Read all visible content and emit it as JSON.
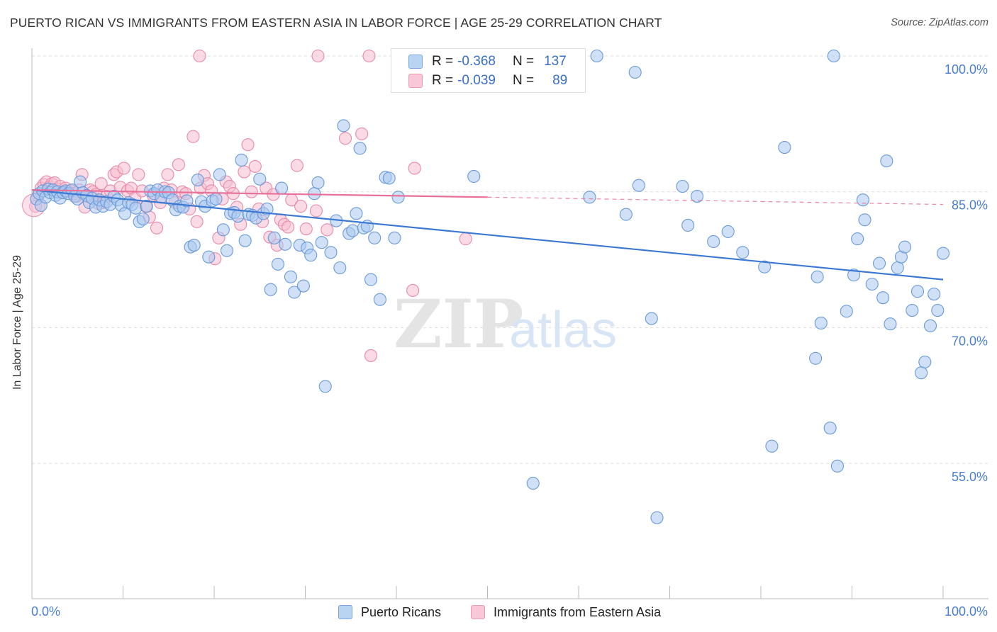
{
  "title": "PUERTO RICAN VS IMMIGRANTS FROM EASTERN ASIA IN LABOR FORCE | AGE 25-29 CORRELATION CHART",
  "source": "Source: ZipAtlas.com",
  "watermark": {
    "zip": "ZIP",
    "atlas": "atlas"
  },
  "legend": {
    "rows": [
      {
        "r_label": "R =",
        "r_value": "-0.368",
        "n_label": "N =",
        "n_value": "137"
      },
      {
        "r_label": "R =",
        "r_value": "-0.039",
        "n_label": "N =",
        "n_value": "89"
      }
    ]
  },
  "bottom_legend": [
    "Puerto Ricans",
    "Immigrants from Eastern Asia"
  ],
  "colors": {
    "blue_fill": "#a9c8f0",
    "blue_stroke": "#6a9ad8",
    "blue_line": "#3a78d4",
    "pink_fill": "#f6bdd0",
    "pink_stroke": "#e88aaa",
    "pink_line": "#e8709a",
    "tick_text": "#4a7fd0",
    "grid": "#dddddd"
  },
  "chart_data": {
    "type": "scatter",
    "title": "PUERTO RICAN VS IMMIGRANTS FROM EASTERN ASIA IN LABOR FORCE | AGE 25-29 CORRELATION CHART",
    "xlabel": "",
    "ylabel": "In Labor Force | Age 25-29",
    "xlim": [
      0,
      100
    ],
    "ylim": [
      40,
      102
    ],
    "x_tick_labels": [
      "0.0%",
      "100.0%"
    ],
    "y_ticks": [
      55,
      70,
      85,
      100
    ],
    "y_tick_labels": [
      "55.0%",
      "70.0%",
      "85.0%",
      "100.0%"
    ],
    "grid": "horizontal dashed",
    "legend_placement": "bottom",
    "series": [
      {
        "name": "Puerto Ricans",
        "color": "#a9c8f0",
        "trend": {
          "x": [
            0,
            100
          ],
          "y": [
            85.2,
            75.3
          ],
          "style": "solid"
        },
        "points": [
          [
            0.5,
            84.2
          ],
          [
            0.8,
            84.8
          ],
          [
            1.0,
            83.5
          ],
          [
            1.2,
            85.1
          ],
          [
            1.5,
            84.4
          ],
          [
            1.8,
            85.3
          ],
          [
            2.0,
            84.9
          ],
          [
            2.3,
            85.2
          ],
          [
            2.6,
            84.6
          ],
          [
            2.8,
            85.0
          ],
          [
            3.1,
            84.3
          ],
          [
            3.4,
            84.9
          ],
          [
            3.7,
            85.1
          ],
          [
            4.0,
            84.8
          ],
          [
            4.4,
            85.2
          ],
          [
            4.7,
            84.5
          ],
          [
            5.0,
            84.2
          ],
          [
            5.3,
            86.1
          ],
          [
            5.6,
            84.9
          ],
          [
            6.0,
            84.6
          ],
          [
            6.3,
            83.8
          ],
          [
            6.6,
            84.3
          ],
          [
            7.0,
            83.3
          ],
          [
            7.4,
            84.1
          ],
          [
            7.8,
            83.4
          ],
          [
            8.2,
            83.9
          ],
          [
            8.6,
            83.6
          ],
          [
            9.0,
            84.5
          ],
          [
            9.4,
            84.1
          ],
          [
            9.8,
            83.5
          ],
          [
            10.2,
            82.6
          ],
          [
            10.6,
            83.8
          ],
          [
            11.0,
            83.6
          ],
          [
            11.4,
            83.2
          ],
          [
            11.8,
            81.7
          ],
          [
            12.2,
            82.0
          ],
          [
            12.6,
            83.4
          ],
          [
            13.0,
            85.1
          ],
          [
            13.4,
            84.8
          ],
          [
            13.8,
            85.2
          ],
          [
            14.2,
            84.4
          ],
          [
            14.6,
            85.0
          ],
          [
            15.0,
            84.9
          ],
          [
            15.4,
            84.1
          ],
          [
            15.8,
            83.0
          ],
          [
            16.2,
            83.4
          ],
          [
            16.6,
            83.3
          ],
          [
            17.0,
            84.0
          ],
          [
            17.4,
            78.9
          ],
          [
            17.8,
            79.1
          ],
          [
            18.2,
            86.3
          ],
          [
            18.6,
            83.9
          ],
          [
            19.0,
            83.4
          ],
          [
            19.4,
            77.8
          ],
          [
            19.8,
            84.0
          ],
          [
            20.2,
            84.2
          ],
          [
            20.6,
            86.9
          ],
          [
            21.0,
            80.8
          ],
          [
            21.4,
            78.5
          ],
          [
            21.8,
            82.6
          ],
          [
            22.2,
            82.7
          ],
          [
            22.6,
            82.3
          ],
          [
            23.0,
            88.5
          ],
          [
            23.4,
            79.6
          ],
          [
            23.8,
            82.5
          ],
          [
            24.2,
            82.4
          ],
          [
            24.6,
            82.1
          ],
          [
            25.0,
            86.4
          ],
          [
            25.4,
            82.6
          ],
          [
            25.8,
            83.1
          ],
          [
            26.2,
            74.2
          ],
          [
            26.6,
            79.9
          ],
          [
            27.0,
            77.0
          ],
          [
            27.4,
            85.4
          ],
          [
            27.8,
            79.2
          ],
          [
            28.4,
            75.6
          ],
          [
            28.8,
            73.9
          ],
          [
            29.4,
            79.1
          ],
          [
            29.8,
            74.6
          ],
          [
            30.2,
            78.8
          ],
          [
            30.6,
            78.0
          ],
          [
            31.0,
            84.8
          ],
          [
            31.4,
            86.0
          ],
          [
            31.8,
            79.4
          ],
          [
            32.2,
            63.5
          ],
          [
            32.8,
            78.3
          ],
          [
            33.4,
            81.8
          ],
          [
            33.8,
            76.6
          ],
          [
            34.2,
            92.3
          ],
          [
            34.8,
            80.4
          ],
          [
            35.2,
            80.7
          ],
          [
            35.6,
            82.6
          ],
          [
            36.0,
            89.8
          ],
          [
            36.4,
            81.0
          ],
          [
            36.8,
            81.2
          ],
          [
            37.2,
            75.3
          ],
          [
            37.6,
            79.9
          ],
          [
            38.2,
            73.1
          ],
          [
            38.8,
            86.6
          ],
          [
            39.2,
            86.5
          ],
          [
            39.8,
            79.9
          ],
          [
            40.2,
            84.4
          ],
          [
            41.0,
            100.0
          ],
          [
            48.5,
            86.7
          ],
          [
            51.0,
            100.0
          ],
          [
            55.0,
            52.8
          ],
          [
            61.2,
            84.4
          ],
          [
            62.0,
            100.0
          ],
          [
            65.2,
            82.5
          ],
          [
            66.2,
            98.2
          ],
          [
            66.6,
            85.7
          ],
          [
            68.0,
            71.0
          ],
          [
            68.6,
            49.0
          ],
          [
            71.4,
            85.6
          ],
          [
            72.0,
            81.3
          ],
          [
            73.0,
            84.5
          ],
          [
            74.8,
            79.5
          ],
          [
            76.4,
            80.6
          ],
          [
            78.0,
            78.3
          ],
          [
            80.4,
            76.7
          ],
          [
            81.2,
            56.9
          ],
          [
            82.6,
            89.9
          ],
          [
            86.0,
            66.6
          ],
          [
            86.2,
            75.6
          ],
          [
            86.6,
            70.5
          ],
          [
            87.6,
            58.9
          ],
          [
            88.0,
            100.0
          ],
          [
            88.4,
            54.7
          ],
          [
            89.4,
            71.8
          ],
          [
            90.2,
            75.8
          ],
          [
            90.6,
            79.8
          ],
          [
            91.2,
            84.1
          ],
          [
            91.4,
            81.9
          ],
          [
            92.2,
            74.8
          ],
          [
            93.0,
            77.1
          ],
          [
            93.4,
            73.3
          ],
          [
            93.8,
            88.4
          ],
          [
            94.2,
            70.4
          ],
          [
            95.0,
            76.6
          ],
          [
            95.4,
            77.8
          ],
          [
            95.8,
            78.9
          ],
          [
            96.6,
            71.9
          ],
          [
            97.2,
            74.0
          ],
          [
            97.6,
            65.0
          ],
          [
            98.0,
            66.2
          ],
          [
            98.6,
            70.2
          ],
          [
            99.0,
            73.7
          ],
          [
            99.4,
            71.9
          ],
          [
            100.0,
            78.2
          ]
        ]
      },
      {
        "name": "Immigrants from Eastern Asia",
        "color": "#f6bdd0",
        "trend": {
          "x": [
            0,
            50
          ],
          "y": [
            85.2,
            84.4
          ],
          "style": "solid",
          "extension": {
            "x": [
              50,
              100
            ],
            "y": [
              84.4,
              83.6
            ],
            "style": "dashed"
          }
        },
        "points": [
          [
            0.4,
            83.4
          ],
          [
            0.7,
            84.6
          ],
          [
            1.0,
            85.4
          ],
          [
            1.3,
            85.8
          ],
          [
            1.6,
            86.1
          ],
          [
            1.9,
            85.5
          ],
          [
            2.2,
            85.9
          ],
          [
            2.5,
            86.0
          ],
          [
            2.8,
            85.3
          ],
          [
            3.1,
            85.6
          ],
          [
            3.4,
            84.9
          ],
          [
            3.7,
            85.4
          ],
          [
            4.0,
            85.0
          ],
          [
            4.3,
            85.1
          ],
          [
            4.6,
            84.8
          ],
          [
            4.9,
            84.5
          ],
          [
            5.2,
            85.2
          ],
          [
            5.5,
            86.9
          ],
          [
            5.8,
            83.3
          ],
          [
            6.1,
            84.5
          ],
          [
            6.4,
            85.2
          ],
          [
            6.7,
            85.0
          ],
          [
            7.0,
            84.7
          ],
          [
            7.3,
            83.7
          ],
          [
            7.6,
            85.9
          ],
          [
            7.9,
            83.8
          ],
          [
            8.2,
            84.5
          ],
          [
            8.6,
            85.1
          ],
          [
            9.0,
            86.9
          ],
          [
            9.3,
            87.2
          ],
          [
            9.7,
            85.5
          ],
          [
            10.1,
            87.6
          ],
          [
            10.5,
            85.1
          ],
          [
            10.9,
            85.4
          ],
          [
            11.3,
            84.3
          ],
          [
            11.7,
            86.9
          ],
          [
            12.1,
            85.1
          ],
          [
            12.5,
            83.4
          ],
          [
            12.9,
            82.2
          ],
          [
            13.3,
            84.6
          ],
          [
            13.7,
            81.0
          ],
          [
            14.1,
            83.8
          ],
          [
            14.5,
            85.4
          ],
          [
            14.9,
            86.9
          ],
          [
            15.3,
            85.2
          ],
          [
            15.7,
            83.8
          ],
          [
            16.1,
            88.0
          ],
          [
            16.5,
            85.0
          ],
          [
            16.9,
            84.8
          ],
          [
            17.3,
            83.1
          ],
          [
            17.7,
            91.1
          ],
          [
            18.1,
            81.7
          ],
          [
            18.5,
            85.4
          ],
          [
            18.9,
            86.8
          ],
          [
            19.3,
            85.9
          ],
          [
            19.7,
            85.1
          ],
          [
            20.1,
            77.6
          ],
          [
            20.5,
            79.9
          ],
          [
            20.9,
            84.2
          ],
          [
            21.3,
            86.1
          ],
          [
            21.7,
            85.6
          ],
          [
            22.1,
            84.8
          ],
          [
            22.5,
            83.3
          ],
          [
            22.9,
            81.4
          ],
          [
            23.3,
            87.2
          ],
          [
            23.7,
            90.2
          ],
          [
            24.1,
            85.0
          ],
          [
            24.5,
            87.8
          ],
          [
            24.9,
            83.1
          ],
          [
            25.3,
            81.7
          ],
          [
            25.7,
            85.4
          ],
          [
            26.1,
            80.0
          ],
          [
            26.5,
            84.7
          ],
          [
            26.9,
            79.1
          ],
          [
            27.3,
            81.9
          ],
          [
            27.7,
            81.4
          ],
          [
            28.1,
            81.1
          ],
          [
            28.5,
            84.1
          ],
          [
            29.1,
            87.9
          ],
          [
            29.5,
            83.4
          ],
          [
            30.1,
            80.9
          ],
          [
            31.2,
            82.9
          ],
          [
            32.4,
            80.8
          ],
          [
            34.4,
            90.9
          ],
          [
            36.2,
            91.4
          ],
          [
            37.2,
            66.9
          ],
          [
            41.8,
            74.1
          ],
          [
            47.6,
            79.8
          ],
          [
            18.4,
            100.0
          ],
          [
            31.4,
            100.0
          ],
          [
            37.0,
            100.0
          ],
          [
            42.0,
            87.6
          ]
        ]
      }
    ]
  }
}
